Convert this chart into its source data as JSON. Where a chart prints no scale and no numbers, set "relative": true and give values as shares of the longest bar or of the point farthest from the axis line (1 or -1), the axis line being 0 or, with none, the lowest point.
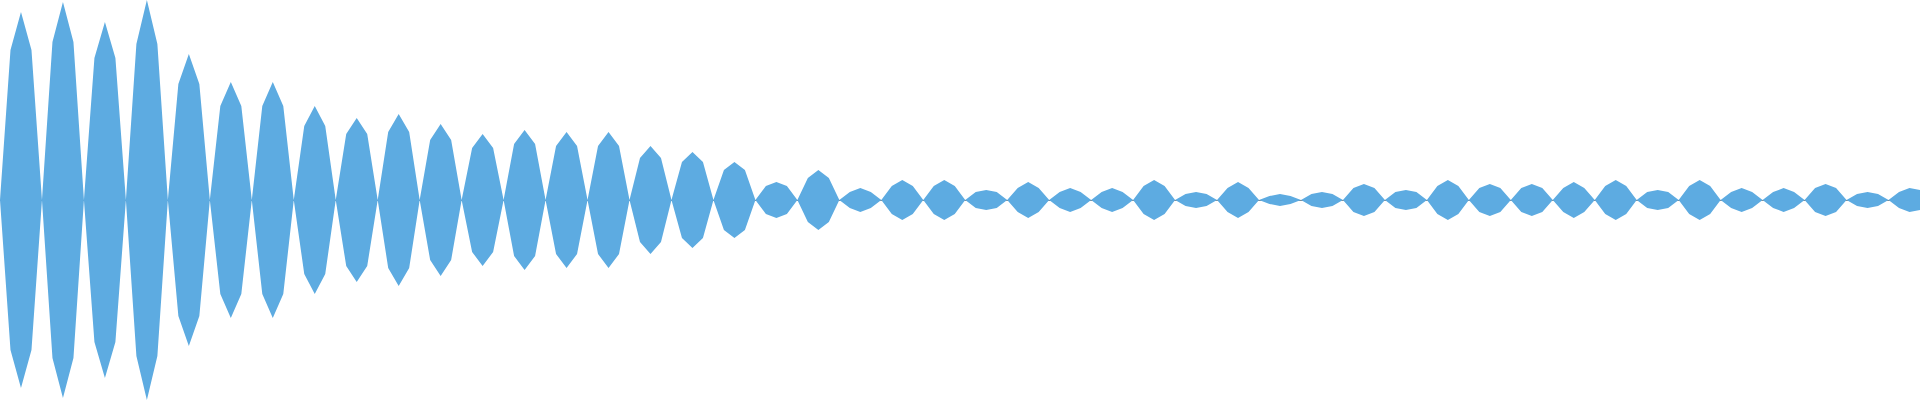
{
  "chart_data": {
    "type": "area",
    "relative": true,
    "categories": [
      null,
      null,
      null,
      null,
      null,
      null,
      null,
      null,
      null,
      null,
      null,
      null,
      null,
      null,
      null,
      null,
      null,
      null,
      null,
      null,
      null,
      null,
      null,
      null,
      null,
      null,
      null,
      null,
      null,
      null,
      null,
      null,
      null,
      null,
      null,
      null,
      null,
      null,
      null,
      null,
      null,
      null,
      null,
      null,
      null,
      null,
      null,
      null,
      null,
      null,
      null,
      null,
      null,
      null,
      null,
      null,
      null,
      null,
      null,
      null,
      null,
      null,
      null,
      null,
      null,
      null,
      null,
      null,
      null,
      null,
      null,
      null,
      null,
      null,
      null,
      null,
      null,
      null,
      null,
      null,
      null,
      null,
      null,
      null,
      null,
      null,
      null,
      null,
      null,
      null,
      null,
      null,
      null,
      null,
      null,
      null,
      null,
      null,
      null,
      null,
      null,
      null,
      null,
      null,
      null,
      null,
      null,
      null,
      null,
      null,
      null,
      null,
      null,
      null,
      null,
      null,
      null,
      null,
      null,
      null,
      null,
      null,
      null,
      null,
      null,
      null,
      null,
      null,
      null,
      null,
      null,
      null,
      null,
      null,
      null,
      null,
      null,
      null,
      null,
      null,
      null,
      null,
      null,
      null,
      null,
      null,
      null,
      null,
      null,
      null,
      null,
      null,
      null,
      null,
      null,
      null,
      null,
      null,
      null,
      null,
      null,
      null,
      null,
      null,
      null,
      null,
      null,
      null,
      null,
      null,
      null,
      null,
      null,
      null,
      null,
      null,
      null,
      null,
      null,
      null,
      null,
      null,
      null,
      null
    ],
    "series": [
      {
        "color": "#5dabe1",
        "values": [
          0,
          0.75,
          0.94,
          0.75,
          0,
          0.79,
          0.99,
          0.79,
          0,
          0.71,
          0.89,
          0.71,
          0,
          0.78,
          1,
          0.78,
          0,
          0.58,
          0.73,
          0.58,
          0,
          0.47,
          0.59,
          0.47,
          0,
          0.47,
          0.59,
          0.47,
          0,
          0.37,
          0.47,
          0.37,
          0,
          0.33,
          0.41,
          0.33,
          0,
          0.34,
          0.43,
          0.34,
          0,
          0.3,
          0.38,
          0.3,
          0,
          0.26,
          0.33,
          0.26,
          0,
          0.28,
          0.35,
          0.28,
          0,
          0.27,
          0.34,
          0.27,
          0,
          0.27,
          0.34,
          0.27,
          0,
          0.21,
          0.27,
          0.21,
          0,
          0.19,
          0.24,
          0.19,
          0,
          0.15,
          0.19,
          0.15,
          0,
          0.07,
          0.09,
          0.07,
          0,
          0.11,
          0.15,
          0.11,
          0,
          0.04,
          0.06,
          0.04,
          0,
          0.07,
          0.1,
          0.07,
          0,
          0.07,
          0.1,
          0.07,
          0,
          0.04,
          0.05,
          0.04,
          0,
          0.06,
          0.09,
          0.06,
          0,
          0.04,
          0.06,
          0.04,
          0,
          0.04,
          0.06,
          0.04,
          0,
          0.07,
          0.1,
          0.07,
          0,
          0.03,
          0.04,
          0.03,
          0,
          0.06,
          0.09,
          0.06,
          0,
          0.02,
          0.03,
          0.02,
          0,
          0.03,
          0.04,
          0.03,
          0,
          0.06,
          0.08,
          0.06,
          0,
          0.04,
          0.05,
          0.04,
          0,
          0.07,
          0.1,
          0.07,
          0,
          0.06,
          0.08,
          0.06,
          0,
          0.06,
          0.08,
          0.06,
          0,
          0.06,
          0.09,
          0.06,
          0,
          0.07,
          0.1,
          0.07,
          0,
          0.04,
          0.05,
          0.04,
          0,
          0.07,
          0.1,
          0.07,
          0,
          0.04,
          0.06,
          0.04,
          0,
          0.04,
          0.06,
          0.04,
          0,
          0.06,
          0.08,
          0.06,
          0,
          0.03,
          0.04,
          0.03,
          0,
          0.04,
          0.06,
          0.05
        ]
      },
      {
        "color": "#5dabe1",
        "values": [
          0,
          -0.75,
          -0.94,
          -0.75,
          0,
          -0.79,
          -0.99,
          -0.79,
          0,
          -0.71,
          -0.89,
          -0.71,
          0,
          -0.78,
          -1,
          -0.78,
          0,
          -0.58,
          -0.73,
          -0.58,
          0,
          -0.47,
          -0.59,
          -0.47,
          0,
          -0.47,
          -0.59,
          -0.47,
          0,
          -0.37,
          -0.47,
          -0.37,
          0,
          -0.33,
          -0.41,
          -0.33,
          0,
          -0.34,
          -0.43,
          -0.34,
          0,
          -0.3,
          -0.38,
          -0.3,
          0,
          -0.26,
          -0.33,
          -0.26,
          0,
          -0.28,
          -0.35,
          -0.28,
          0,
          -0.27,
          -0.34,
          -0.27,
          0,
          -0.27,
          -0.34,
          -0.27,
          0,
          -0.21,
          -0.27,
          -0.21,
          0,
          -0.19,
          -0.24,
          -0.19,
          0,
          -0.15,
          -0.19,
          -0.15,
          0,
          -0.07,
          -0.09,
          -0.07,
          0,
          -0.11,
          -0.15,
          -0.11,
          0,
          -0.04,
          -0.06,
          -0.04,
          0,
          -0.07,
          -0.1,
          -0.07,
          0,
          -0.07,
          -0.1,
          -0.07,
          0,
          -0.04,
          -0.05,
          -0.04,
          0,
          -0.06,
          -0.09,
          -0.06,
          0,
          -0.04,
          -0.06,
          -0.04,
          0,
          -0.04,
          -0.06,
          -0.04,
          0,
          -0.07,
          -0.1,
          -0.07,
          0,
          -0.03,
          -0.04,
          -0.03,
          0,
          -0.06,
          -0.09,
          -0.06,
          0,
          -0.02,
          -0.03,
          -0.02,
          0,
          -0.03,
          -0.04,
          -0.03,
          0,
          -0.06,
          -0.08,
          -0.06,
          0,
          -0.04,
          -0.05,
          -0.04,
          0,
          -0.07,
          -0.1,
          -0.07,
          0,
          -0.06,
          -0.08,
          -0.06,
          0,
          -0.06,
          -0.08,
          -0.06,
          0,
          -0.06,
          -0.09,
          -0.06,
          0,
          -0.07,
          -0.1,
          -0.07,
          0,
          -0.04,
          -0.05,
          -0.04,
          0,
          -0.07,
          -0.1,
          -0.07,
          0,
          -0.04,
          -0.06,
          -0.04,
          0,
          -0.04,
          -0.06,
          -0.04,
          0,
          -0.06,
          -0.08,
          -0.06,
          0,
          -0.03,
          -0.04,
          -0.03,
          0,
          -0.04,
          -0.06,
          -0.05
        ]
      }
    ]
  }
}
